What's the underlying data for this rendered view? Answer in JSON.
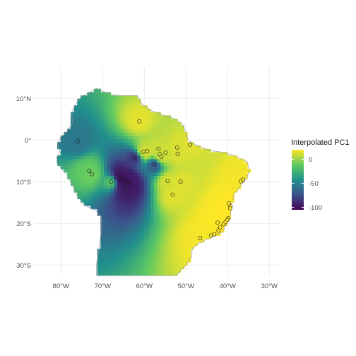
{
  "chart_data": {
    "type": "map-raster-with-points",
    "title": "",
    "xlabel": "",
    "ylabel": "",
    "x_ticks": [
      {
        "value": -80,
        "label": "80°W"
      },
      {
        "value": -70,
        "label": "70°W"
      },
      {
        "value": -60,
        "label": "60°W"
      },
      {
        "value": -50,
        "label": "50°W"
      },
      {
        "value": -40,
        "label": "40°W"
      },
      {
        "value": -30,
        "label": "30°W"
      }
    ],
    "y_ticks": [
      {
        "value": 10,
        "label": "10°N"
      },
      {
        "value": 0,
        "label": "0°"
      },
      {
        "value": -10,
        "label": "10°S"
      },
      {
        "value": -20,
        "label": "20°S"
      },
      {
        "value": -30,
        "label": "30°S"
      }
    ],
    "xlim": [
      -86.5,
      -27.5
    ],
    "ylim": [
      -32.5,
      17.5
    ],
    "grid": true,
    "legend": {
      "title": "Interpolated PC1",
      "position": "right",
      "breaks": [
        {
          "value": 0,
          "label": "0"
        },
        {
          "value": -50,
          "label": "-50"
        },
        {
          "value": -100,
          "label": "-100"
        }
      ],
      "range": [
        -105,
        20
      ],
      "palette": [
        "#440154",
        "#3b528b",
        "#21918c",
        "#5ec962",
        "#fde725"
      ]
    },
    "points": [
      {
        "lon": -76.0,
        "lat": -0.3,
        "pc1": -55
      },
      {
        "lon": -61.2,
        "lat": 4.5,
        "pc1": 15
      },
      {
        "lon": -73.2,
        "lat": -7.4,
        "pc1": -10
      },
      {
        "lon": -72.6,
        "lat": -8.2,
        "pc1": -8
      },
      {
        "lon": -68.0,
        "lat": -10.0,
        "pc1": -15
      },
      {
        "lon": -66.1,
        "lat": -8.4,
        "pc1": -95
      },
      {
        "lon": -65.6,
        "lat": -9.4,
        "pc1": -100
      },
      {
        "lon": -65.2,
        "lat": -9.3,
        "pc1": -98
      },
      {
        "lon": -64.9,
        "lat": -9.9,
        "pc1": -97
      },
      {
        "lon": -64.5,
        "lat": -10.6,
        "pc1": -96
      },
      {
        "lon": -63.6,
        "lat": -10.4,
        "pc1": -95
      },
      {
        "lon": -63.9,
        "lat": -10.1,
        "pc1": -99
      },
      {
        "lon": -64.7,
        "lat": -11.6,
        "pc1": -94
      },
      {
        "lon": -62.3,
        "lat": -4.2,
        "pc1": -85
      },
      {
        "lon": -60.2,
        "lat": -2.8,
        "pc1": 12
      },
      {
        "lon": -59.3,
        "lat": -2.7,
        "pc1": 12
      },
      {
        "lon": -57.6,
        "lat": -5.8,
        "pc1": -70
      },
      {
        "lon": -56.6,
        "lat": -2.1,
        "pc1": 10
      },
      {
        "lon": -56.3,
        "lat": -3.4,
        "pc1": 10
      },
      {
        "lon": -55.9,
        "lat": -4.0,
        "pc1": 11
      },
      {
        "lon": -54.9,
        "lat": -3.0,
        "pc1": 11
      },
      {
        "lon": -54.4,
        "lat": -9.8,
        "pc1": 12
      },
      {
        "lon": -53.2,
        "lat": -13.1,
        "pc1": 14
      },
      {
        "lon": -52.1,
        "lat": -1.8,
        "pc1": 13
      },
      {
        "lon": -52.0,
        "lat": -3.3,
        "pc1": 13
      },
      {
        "lon": -51.3,
        "lat": -10.0,
        "pc1": 14
      },
      {
        "lon": -49.0,
        "lat": -1.1,
        "pc1": 14
      },
      {
        "lon": -36.8,
        "lat": -9.9,
        "pc1": 18
      },
      {
        "lon": -36.3,
        "lat": -9.5,
        "pc1": 18
      },
      {
        "lon": -39.7,
        "lat": -15.2,
        "pc1": 20
      },
      {
        "lon": -39.3,
        "lat": -15.9,
        "pc1": 20
      },
      {
        "lon": -39.4,
        "lat": -16.4,
        "pc1": 20
      },
      {
        "lon": -39.9,
        "lat": -18.8,
        "pc1": 20
      },
      {
        "lon": -40.1,
        "lat": -19.2,
        "pc1": 20
      },
      {
        "lon": -40.5,
        "lat": -19.7,
        "pc1": 20
      },
      {
        "lon": -41.0,
        "lat": -20.2,
        "pc1": 20
      },
      {
        "lon": -42.4,
        "lat": -19.8,
        "pc1": 20
      },
      {
        "lon": -41.8,
        "lat": -21.0,
        "pc1": 20
      },
      {
        "lon": -42.2,
        "lat": -21.7,
        "pc1": 20
      },
      {
        "lon": -43.2,
        "lat": -22.6,
        "pc1": 19
      },
      {
        "lon": -44.0,
        "lat": -22.9,
        "pc1": 19
      },
      {
        "lon": -46.6,
        "lat": -23.5,
        "pc1": 18
      }
    ],
    "land_outline": [
      [
        -73.0,
        11.5
      ],
      [
        -71.5,
        12.4
      ],
      [
        -70.0,
        11.7
      ],
      [
        -67.5,
        10.8
      ],
      [
        -64.5,
        10.6
      ],
      [
        -61.8,
        10.7
      ],
      [
        -60.5,
        8.5
      ],
      [
        -58.2,
        7.0
      ],
      [
        -55.5,
        6.0
      ],
      [
        -52.5,
        5.0
      ],
      [
        -51.0,
        4.0
      ],
      [
        -50.0,
        1.8
      ],
      [
        -49.5,
        0.0
      ],
      [
        -48.0,
        -1.0
      ],
      [
        -44.5,
        -2.5
      ],
      [
        -41.5,
        -2.9
      ],
      [
        -38.5,
        -3.7
      ],
      [
        -35.3,
        -5.2
      ],
      [
        -34.8,
        -7.2
      ],
      [
        -35.4,
        -9.2
      ],
      [
        -37.0,
        -11.0
      ],
      [
        -38.5,
        -13.0
      ],
      [
        -39.0,
        -15.0
      ],
      [
        -39.3,
        -17.8
      ],
      [
        -40.2,
        -20.0
      ],
      [
        -41.2,
        -22.0
      ],
      [
        -43.0,
        -23.0
      ],
      [
        -45.0,
        -23.8
      ],
      [
        -47.0,
        -24.8
      ],
      [
        -48.5,
        -26.0
      ],
      [
        -48.6,
        -28.0
      ],
      [
        -50.0,
        -30.0
      ],
      [
        -51.2,
        -31.2
      ],
      [
        -52.2,
        -32.5
      ],
      [
        -71.5,
        -32.5
      ],
      [
        -71.5,
        -30.0
      ],
      [
        -71.0,
        -27.0
      ],
      [
        -70.6,
        -24.0
      ],
      [
        -70.2,
        -21.0
      ],
      [
        -70.3,
        -18.5
      ],
      [
        -71.5,
        -17.0
      ],
      [
        -74.5,
        -15.5
      ],
      [
        -76.3,
        -13.0
      ],
      [
        -77.2,
        -11.0
      ],
      [
        -78.5,
        -8.5
      ],
      [
        -79.8,
        -7.0
      ],
      [
        -81.0,
        -5.5
      ],
      [
        -81.0,
        -4.0
      ],
      [
        -80.2,
        -3.0
      ],
      [
        -80.8,
        -1.0
      ],
      [
        -80.0,
        0.8
      ],
      [
        -78.8,
        1.8
      ],
      [
        -77.3,
        4.0
      ],
      [
        -77.4,
        6.7
      ],
      [
        -76.5,
        8.5
      ],
      [
        -75.2,
        10.4
      ]
    ]
  }
}
